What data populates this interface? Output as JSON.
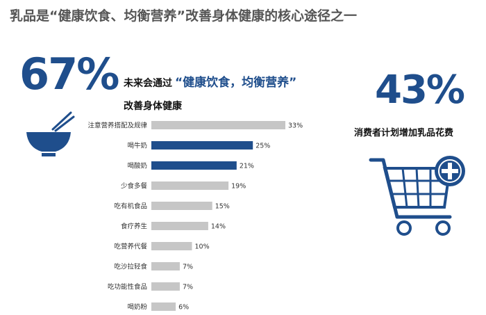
{
  "header": {
    "title": "乳品是“健康饮食、均衡营养”改善身体健康的核心途径之一"
  },
  "left_stat": {
    "value": "67%",
    "headline_prefix": "未来会通过",
    "headline_quote": "“健康饮食，均衡营养”",
    "headline_suffix": "改善身体健康"
  },
  "right_stat": {
    "value": "43%",
    "caption": "消费者计划增加乳品花费"
  },
  "icons": {
    "left": "rice-bowl-chopsticks-icon",
    "right": "shopping-cart-plus-icon"
  },
  "colors": {
    "accent": "#1f4e8c",
    "bar_default": "#c6c6c6",
    "bar_highlight": "#1f4e8c"
  },
  "chart_data": {
    "type": "bar",
    "orientation": "horizontal",
    "categories": [
      "注意营养搭配及规律",
      "喝牛奶",
      "喝酸奶",
      "少食多餐",
      "吃有机食品",
      "食疗养生",
      "吃营养代餐",
      "吃沙拉轻食",
      "吃功能性食品",
      "喝奶粉"
    ],
    "values": [
      33,
      25,
      21,
      19,
      15,
      14,
      10,
      7,
      7,
      6
    ],
    "value_labels": [
      "33%",
      "25%",
      "21%",
      "19%",
      "15%",
      "14%",
      "10%",
      "7%",
      "7%",
      "6%"
    ],
    "highlighted": [
      false,
      true,
      true,
      false,
      false,
      false,
      false,
      false,
      false,
      false
    ],
    "unit": "%",
    "xlim": [
      0,
      33
    ],
    "grid": false
  }
}
